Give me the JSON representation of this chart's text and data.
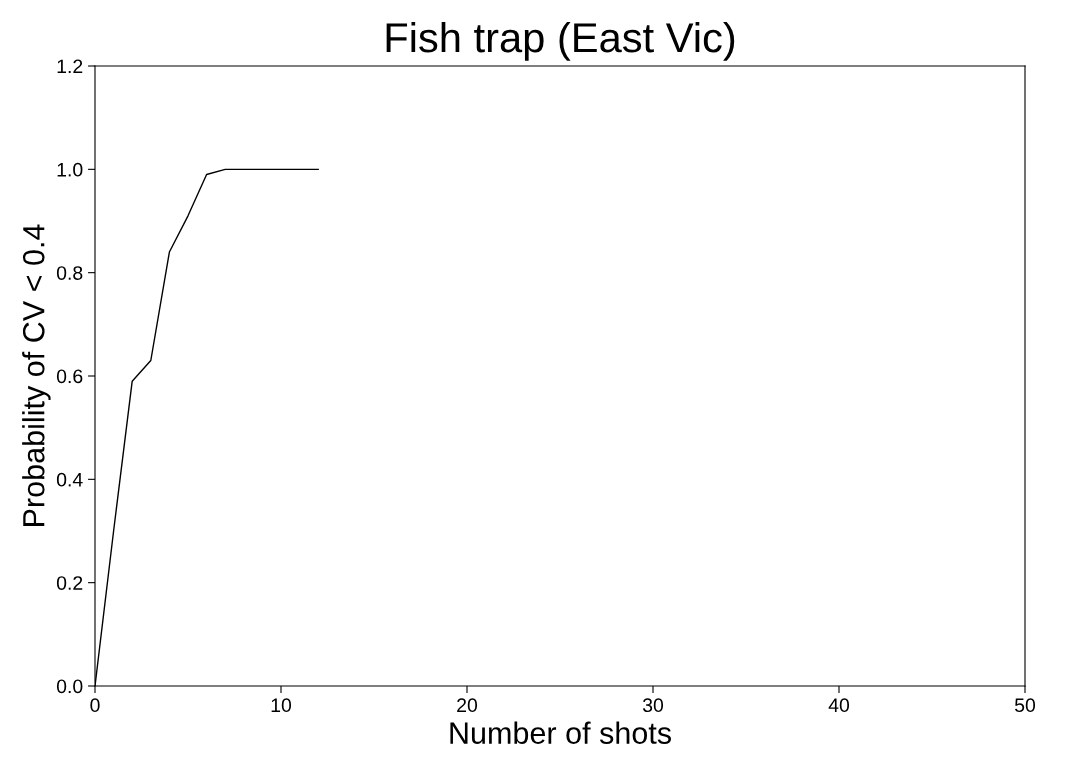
{
  "chart_data": {
    "type": "line",
    "title": "Fish trap (East Vic)",
    "xlabel": "Number of shots",
    "ylabel": "Probability of CV < 0.4",
    "x": [
      0,
      1,
      2,
      3,
      4,
      5,
      6,
      7,
      8,
      9,
      10,
      11,
      12
    ],
    "series": [
      {
        "color": "#000000",
        "values": [
          0,
          0.3,
          0.59,
          0.63,
          0.84,
          0.91,
          0.99,
          1.0,
          1.0,
          1.0,
          1.0,
          1.0,
          1.0
        ]
      }
    ],
    "xlim": [
      0,
      50
    ],
    "xticks": [
      0,
      10,
      20,
      30,
      40,
      50
    ],
    "ylim": [
      0,
      1.2
    ],
    "yticks": [
      {
        "value": 0,
        "label": "0.0"
      },
      {
        "value": 0.2,
        "label": "0.2"
      },
      {
        "value": 0.4,
        "label": "0.4"
      },
      {
        "value": 0.6,
        "label": "0.6"
      },
      {
        "value": 0.8,
        "label": "0.8"
      },
      {
        "value": 1.0,
        "label": "1.0"
      },
      {
        "value": 1.2,
        "label": "1.2"
      }
    ],
    "grid": false,
    "legend": false,
    "marker": "none",
    "line_style": "solid"
  }
}
